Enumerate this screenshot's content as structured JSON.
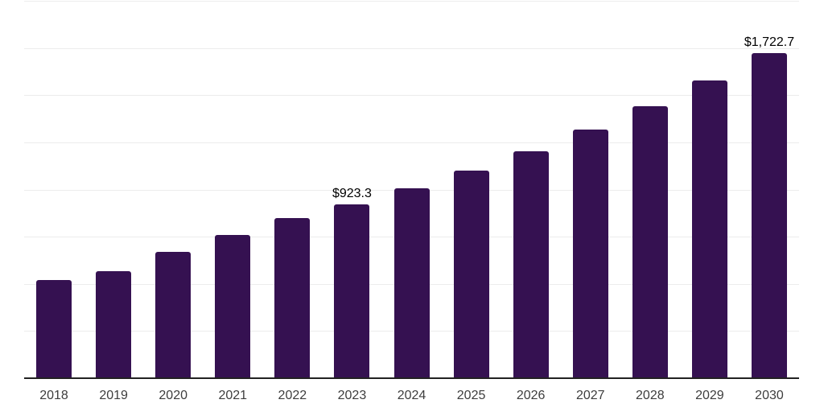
{
  "chart_data": {
    "type": "bar",
    "title": "",
    "xlabel": "",
    "ylabel": "",
    "categories": [
      "2018",
      "2019",
      "2020",
      "2021",
      "2022",
      "2023",
      "2024",
      "2025",
      "2026",
      "2027",
      "2028",
      "2029",
      "2030"
    ],
    "values": [
      521,
      568,
      668,
      758,
      849,
      923.3,
      1006,
      1100,
      1203,
      1316,
      1440,
      1577,
      1722.7
    ],
    "value_labels": [
      "",
      "",
      "",
      "",
      "",
      "$923.3",
      "",
      "",
      "",
      "",
      "",
      "",
      "$1,722.7"
    ],
    "ylim": [
      0,
      2000
    ],
    "grid_step": 250,
    "grid": true,
    "legend_position": "none",
    "colors": {
      "bar": "#351151",
      "gridline": "#ececec",
      "axis_line": "#222222",
      "value_label_text": "#000000",
      "tick_label_text": "#3d3d3d",
      "background": "#ffffff"
    }
  }
}
